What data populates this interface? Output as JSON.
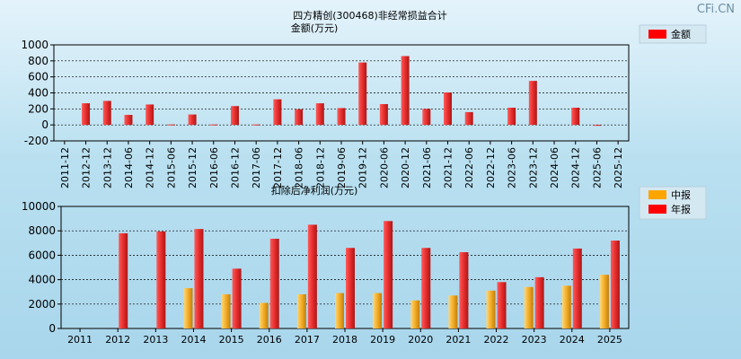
{
  "watermark": "CFi.CN",
  "colors": {
    "red": "#e32a2a",
    "orange": "#f0a820",
    "grid": "#000000"
  },
  "chart_data": [
    {
      "type": "bar",
      "title": "四方精创(300468)非经常损益合计",
      "ylabel": "金额(万元)",
      "legend": [
        "金额"
      ],
      "legend_position": "top-right",
      "grid": true,
      "ylim": [
        -200,
        1000
      ],
      "yticks": [
        1000,
        800,
        600,
        400,
        200,
        0,
        -200
      ],
      "categories": [
        "2011-12",
        "2012-12",
        "2013-12",
        "2014-06",
        "2014-12",
        "2015-06",
        "2015-12",
        "2016-06",
        "2016-12",
        "2017-06",
        "2017-12",
        "2018-06",
        "2018-12",
        "2019-06",
        "2019-12",
        "2020-06",
        "2020-12",
        "2021-06",
        "2021-12",
        "2022-06",
        "2022-12",
        "2023-06",
        "2023-12",
        "2024-06",
        "2024-12",
        "2025-06",
        "2025-12"
      ],
      "series": [
        {
          "name": "金额",
          "values": [
            0,
            270,
            300,
            125,
            255,
            5,
            130,
            5,
            235,
            5,
            320,
            195,
            270,
            210,
            780,
            260,
            860,
            200,
            405,
            160,
            0,
            215,
            550,
            0,
            215,
            -3,
            0
          ]
        }
      ]
    },
    {
      "type": "bar",
      "title": "扣除后净利润(万元)",
      "legend": [
        "中报",
        "年报"
      ],
      "legend_position": "top-right",
      "grid": true,
      "ylim": [
        0,
        10000
      ],
      "yticks": [
        10000,
        8000,
        6000,
        4000,
        2000,
        0
      ],
      "categories": [
        "2011",
        "2012",
        "2013",
        "2014",
        "2015",
        "2016",
        "2017",
        "2018",
        "2019",
        "2020",
        "2021",
        "2022",
        "2023",
        "2024",
        "2025"
      ],
      "series": [
        {
          "name": "中报",
          "values": [
            0,
            0,
            0,
            3300,
            2800,
            2100,
            2800,
            2900,
            2900,
            2300,
            2700,
            3100,
            3400,
            3500,
            4400
          ]
        },
        {
          "name": "年报",
          "values": [
            0,
            7800,
            7950,
            8150,
            4900,
            7350,
            8500,
            6600,
            8800,
            6600,
            6250,
            3800,
            4200,
            6550,
            7200
          ]
        }
      ]
    }
  ]
}
